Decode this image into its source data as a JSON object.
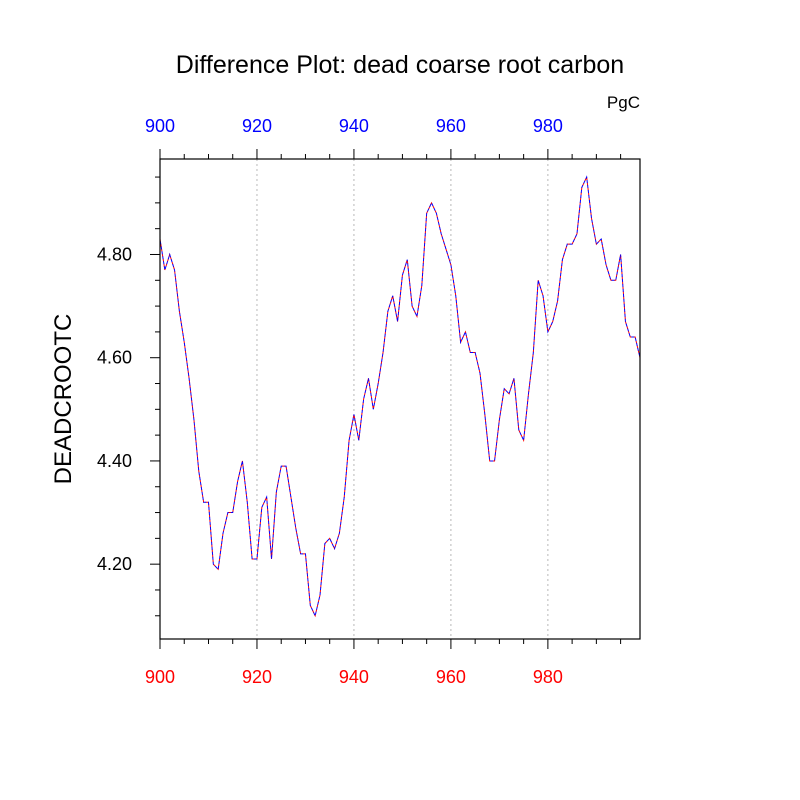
{
  "chart_data": {
    "type": "line",
    "title": "Difference Plot: dead coarse root carbon",
    "units": "PgC",
    "ylabel": "DEADCROOTC",
    "xlabel": "",
    "xlim": [
      900,
      999
    ],
    "ylim": [
      4.055,
      4.985
    ],
    "x_ticks": [
      900,
      920,
      940,
      960,
      980
    ],
    "x_tick_labels": [
      "900",
      "920",
      "940",
      "960",
      "980"
    ],
    "y_ticks": [
      4.2,
      4.4,
      4.6,
      4.8
    ],
    "y_tick_labels": [
      "4.20",
      "4.40",
      "4.60",
      "4.80"
    ],
    "bottom_tick_color": "#ff0000",
    "top_tick_color": "#0000ff",
    "grid": "vertical dotted at x ticks",
    "series": [
      {
        "color_a": "#ff0000",
        "color_b": "#0000ff",
        "x": [
          900,
          901,
          902,
          903,
          904,
          905,
          906,
          907,
          908,
          909,
          910,
          911,
          912,
          913,
          914,
          915,
          916,
          917,
          918,
          919,
          920,
          921,
          922,
          923,
          924,
          925,
          926,
          927,
          928,
          929,
          930,
          931,
          932,
          933,
          934,
          935,
          936,
          937,
          938,
          939,
          940,
          941,
          942,
          943,
          944,
          945,
          946,
          947,
          948,
          949,
          950,
          951,
          952,
          953,
          954,
          955,
          956,
          957,
          958,
          959,
          960,
          961,
          962,
          963,
          964,
          965,
          966,
          967,
          968,
          969,
          970,
          971,
          972,
          973,
          974,
          975,
          976,
          977,
          978,
          979,
          980,
          981,
          982,
          983,
          984,
          985,
          986,
          987,
          988,
          989,
          990,
          991,
          992,
          993,
          994,
          995,
          996,
          997,
          998,
          999
        ],
        "values": [
          4.83,
          4.77,
          4.8,
          4.77,
          4.69,
          4.63,
          4.56,
          4.48,
          4.38,
          4.32,
          4.32,
          4.2,
          4.19,
          4.26,
          4.3,
          4.3,
          4.36,
          4.4,
          4.32,
          4.21,
          4.21,
          4.31,
          4.33,
          4.21,
          4.34,
          4.39,
          4.39,
          4.33,
          4.27,
          4.22,
          4.22,
          4.12,
          4.1,
          4.14,
          4.24,
          4.25,
          4.23,
          4.26,
          4.33,
          4.44,
          4.49,
          4.44,
          4.52,
          4.56,
          4.5,
          4.55,
          4.61,
          4.69,
          4.72,
          4.67,
          4.76,
          4.79,
          4.7,
          4.68,
          4.74,
          4.88,
          4.9,
          4.88,
          4.84,
          4.81,
          4.78,
          4.72,
          4.63,
          4.65,
          4.61,
          4.61,
          4.57,
          4.49,
          4.4,
          4.4,
          4.48,
          4.54,
          4.53,
          4.56,
          4.46,
          4.44,
          4.53,
          4.61,
          4.75,
          4.72,
          4.65,
          4.67,
          4.71,
          4.79,
          4.82,
          4.82,
          4.84,
          4.93,
          4.95,
          4.87,
          4.82,
          4.83,
          4.78,
          4.75,
          4.75,
          4.8,
          4.67,
          4.64,
          4.64,
          4.6
        ]
      }
    ]
  }
}
